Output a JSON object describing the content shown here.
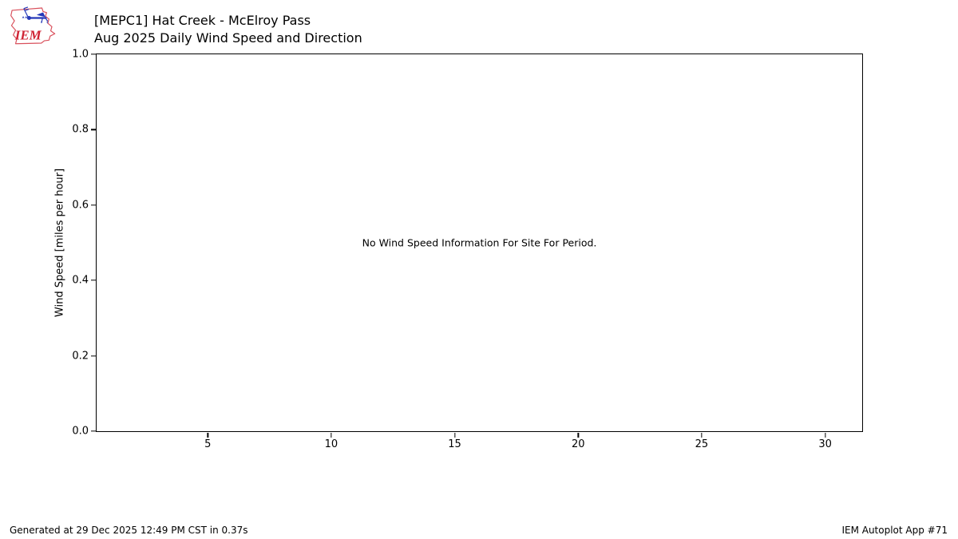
{
  "header": {
    "logo_text": "IEM",
    "title_line1": "[MEPC1] Hat Creek - McElroy Pass",
    "title_line2": "Aug 2025 Daily Wind Speed and Direction"
  },
  "chart_data": {
    "type": "line",
    "title": "[MEPC1] Hat Creek - McElroy Pass",
    "subtitle": "Aug 2025 Daily Wind Speed and Direction",
    "xlabel": "",
    "ylabel": "Wind Speed [miles per hour]",
    "xlim": [
      0.5,
      31.5
    ],
    "ylim": [
      0.0,
      1.0
    ],
    "xticks": [
      5,
      10,
      15,
      20,
      25,
      30
    ],
    "xtick_labels": [
      "5",
      "10",
      "15",
      "20",
      "25",
      "30"
    ],
    "yticks": [
      0.0,
      0.2,
      0.4,
      0.6,
      0.8,
      1.0
    ],
    "ytick_labels": [
      "0.0",
      "0.2",
      "0.4",
      "0.6",
      "0.8",
      "1.0"
    ],
    "grid": false,
    "legend": false,
    "series": [],
    "annotation": "No Wind Speed Information For Site For Period."
  },
  "footer": {
    "generated": "Generated at 29 Dec 2025 12:49 PM CST in 0.37s",
    "app": "IEM Autoplot App #71"
  },
  "colors": {
    "logo_red": "#cf2233",
    "logo_outline_red": "#d9505c",
    "logo_blue": "#2438b8",
    "axis": "#000000",
    "background": "#ffffff"
  }
}
